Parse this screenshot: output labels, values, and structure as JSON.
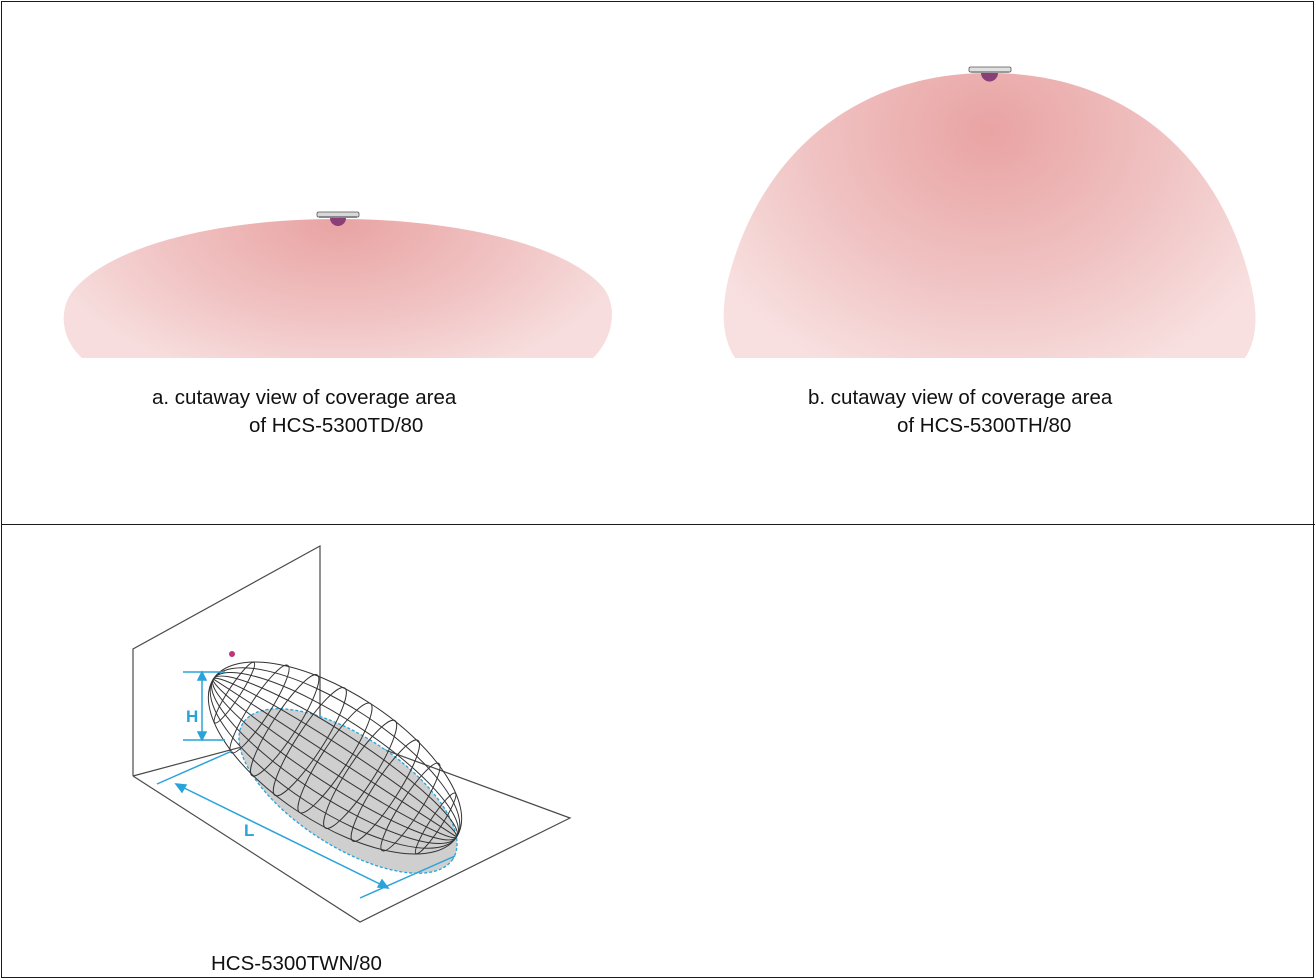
{
  "figures": [
    {
      "id": "a",
      "caption_line1": "a. cutaway view of coverage area",
      "caption_line2": "of HCS-5300TD/80"
    },
    {
      "id": "b",
      "caption_line1": "b. cutaway view of coverage area",
      "caption_line2": "of HCS-5300TH/80"
    },
    {
      "id": "c",
      "caption_line1": "HCS-5300TWN/80",
      "dimension_height_label": "H",
      "dimension_length_label": "L"
    }
  ],
  "colors": {
    "coverage_core": "#e9a3a3",
    "coverage_edge": "#f6dada",
    "sensor_body": "#8a3f78",
    "dimension_lines": "#2aa3d8",
    "wireframe": "#333333",
    "floor_shadow": "#cfcfcf"
  }
}
